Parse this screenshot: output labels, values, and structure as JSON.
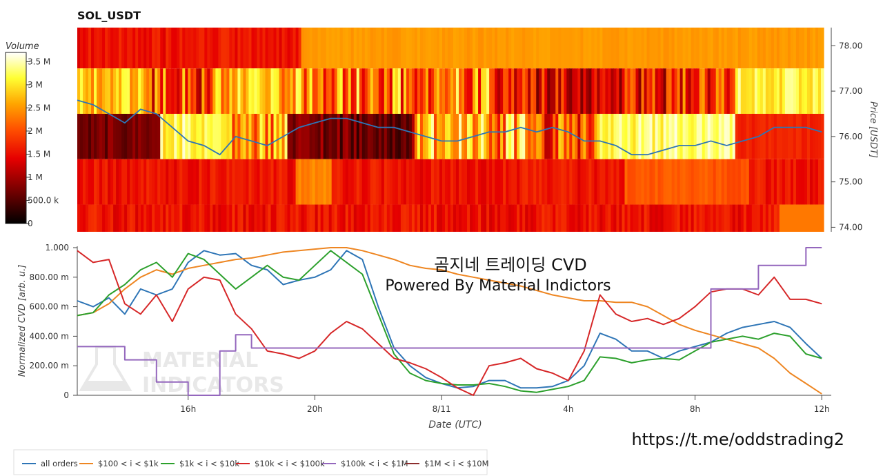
{
  "chart_data": [
    {
      "type": "heatmap",
      "title": "SOL_USDT",
      "ylabel": "Price [USDT]",
      "price_ticks": [
        "78.00",
        "77.00",
        "76.00",
        "75.00",
        "74.00"
      ],
      "price_levels": [
        78.0,
        77.0,
        76.0,
        75.0,
        74.0
      ],
      "ylim": [
        73.9,
        78.4
      ],
      "price_bands": [
        {
          "from": 77.5,
          "to": 78.4
        },
        {
          "from": 76.5,
          "to": 77.5
        },
        {
          "from": 75.5,
          "to": 76.5
        },
        {
          "from": 74.5,
          "to": 75.5
        },
        {
          "from": 73.9,
          "to": 74.5
        }
      ],
      "colorbar": {
        "title": "Volume",
        "tick_labels": [
          "3.5 M",
          "3 M",
          "2.5 M",
          "2 M",
          "1.5 M",
          "1 M",
          "500.0 k",
          "0"
        ],
        "tick_values": [
          3500000,
          3000000,
          2500000,
          2000000,
          1500000,
          1000000,
          500000,
          0
        ],
        "max": 3700000,
        "colors": [
          "#000000",
          "#7a0000",
          "#e60000",
          "#ff5000",
          "#ffa500",
          "#ffff33",
          "#ffffff"
        ]
      },
      "price_line": {
        "color": "#2e75b6",
        "x_hours": [
          0,
          0.5,
          1,
          1.5,
          2,
          2.5,
          3,
          3.5,
          4,
          4.5,
          5,
          5.5,
          6,
          6.5,
          7,
          7.5,
          8,
          8.5,
          9,
          9.5,
          10,
          10.5,
          11,
          11.5,
          12,
          12.5,
          13,
          13.5,
          14,
          14.5,
          15,
          15.5,
          16,
          16.5,
          17,
          17.5,
          18,
          18.5,
          19,
          19.5,
          20,
          20.5,
          21,
          21.5,
          22,
          22.5,
          23,
          23.5
        ],
        "values": [
          76.8,
          76.7,
          76.5,
          76.3,
          76.6,
          76.5,
          76.2,
          75.9,
          75.8,
          75.6,
          76.0,
          75.9,
          75.8,
          76.0,
          76.2,
          76.3,
          76.4,
          76.4,
          76.3,
          76.2,
          76.2,
          76.1,
          76.0,
          75.9,
          75.9,
          76.0,
          76.1,
          76.1,
          76.2,
          76.1,
          76.2,
          76.1,
          75.9,
          75.9,
          75.8,
          75.6,
          75.6,
          75.7,
          75.8,
          75.8,
          75.9,
          75.8,
          75.9,
          76.0,
          76.2,
          76.2,
          76.2,
          76.1
        ]
      }
    },
    {
      "type": "line",
      "ylabel": "Normalized CVD [arb. u.]",
      "xlabel": "Date (UTC)",
      "x_ticks": [
        {
          "label": "16h",
          "hour": 3.5
        },
        {
          "label": "20h",
          "hour": 7.5
        },
        {
          "label": "8/11",
          "hour": 11.5
        },
        {
          "label": "4h",
          "hour": 15.5
        },
        {
          "label": "8h",
          "hour": 19.5
        },
        {
          "label": "12h",
          "hour": 23.5
        }
      ],
      "y_ticks": [
        {
          "label": "1.000",
          "value": 1.0
        },
        {
          "label": "800.00 m",
          "value": 0.8
        },
        {
          "label": "600.00 m",
          "value": 0.6
        },
        {
          "label": "400.00 m",
          "value": 0.4
        },
        {
          "label": "200.00 m",
          "value": 0.2
        },
        {
          "label": "0",
          "value": 0.0
        }
      ],
      "xlim": [
        0,
        23.8
      ],
      "ylim": [
        0,
        1.0
      ],
      "x_hours": [
        0,
        0.5,
        1,
        1.5,
        2,
        2.5,
        3,
        3.5,
        4,
        4.5,
        5,
        5.5,
        6,
        6.5,
        7,
        7.5,
        8,
        8.5,
        9,
        9.5,
        10,
        10.5,
        11,
        11.5,
        12,
        12.5,
        13,
        13.5,
        14,
        14.5,
        15,
        15.5,
        16,
        16.5,
        17,
        17.5,
        18,
        18.5,
        19,
        19.5,
        20,
        20.5,
        21,
        21.5,
        22,
        22.5,
        23,
        23.5
      ],
      "series": [
        {
          "name": "all orders",
          "color": "#2e75b6",
          "values": [
            0.64,
            0.6,
            0.66,
            0.55,
            0.72,
            0.68,
            0.72,
            0.9,
            0.98,
            0.95,
            0.96,
            0.88,
            0.85,
            0.75,
            0.78,
            0.8,
            0.85,
            0.98,
            0.92,
            0.6,
            0.32,
            0.2,
            0.12,
            0.08,
            0.05,
            0.06,
            0.1,
            0.1,
            0.05,
            0.05,
            0.06,
            0.1,
            0.2,
            0.42,
            0.38,
            0.3,
            0.3,
            0.25,
            0.3,
            0.33,
            0.36,
            0.42,
            0.46,
            0.48,
            0.5,
            0.46,
            0.35,
            0.25
          ]
        },
        {
          "name": "$100 < i < $1k",
          "color": "#ee8622",
          "values": [
            0.54,
            0.56,
            0.62,
            0.72,
            0.8,
            0.85,
            0.82,
            0.86,
            0.88,
            0.9,
            0.92,
            0.93,
            0.95,
            0.97,
            0.98,
            0.99,
            1.0,
            1.0,
            0.98,
            0.95,
            0.92,
            0.88,
            0.86,
            0.85,
            0.82,
            0.8,
            0.78,
            0.76,
            0.74,
            0.71,
            0.68,
            0.66,
            0.64,
            0.64,
            0.63,
            0.63,
            0.6,
            0.54,
            0.48,
            0.44,
            0.41,
            0.38,
            0.35,
            0.32,
            0.25,
            0.15,
            0.08,
            0.01
          ]
        },
        {
          "name": "$1k < i < $10k",
          "color": "#2ca02c",
          "values": [
            0.54,
            0.56,
            0.68,
            0.75,
            0.85,
            0.9,
            0.8,
            0.96,
            0.92,
            0.82,
            0.72,
            0.8,
            0.88,
            0.8,
            0.78,
            0.88,
            0.98,
            0.9,
            0.82,
            0.55,
            0.28,
            0.15,
            0.1,
            0.08,
            0.07,
            0.07,
            0.08,
            0.06,
            0.03,
            0.02,
            0.04,
            0.06,
            0.1,
            0.26,
            0.25,
            0.22,
            0.24,
            0.25,
            0.24,
            0.3,
            0.36,
            0.38,
            0.4,
            0.38,
            0.42,
            0.4,
            0.28,
            0.25
          ]
        },
        {
          "name": "$10k < i < $100k",
          "color": "#d62728",
          "values": [
            0.98,
            0.9,
            0.92,
            0.62,
            0.55,
            0.68,
            0.5,
            0.72,
            0.8,
            0.78,
            0.55,
            0.45,
            0.3,
            0.28,
            0.25,
            0.3,
            0.42,
            0.5,
            0.45,
            0.35,
            0.25,
            0.22,
            0.18,
            0.12,
            0.05,
            0.0,
            0.2,
            0.22,
            0.25,
            0.18,
            0.15,
            0.1,
            0.3,
            0.68,
            0.55,
            0.5,
            0.52,
            0.48,
            0.52,
            0.6,
            0.7,
            0.72,
            0.72,
            0.68,
            0.8,
            0.65,
            0.65,
            0.62
          ]
        },
        {
          "name": "$100k < i < $1M",
          "color": "#9467bd",
          "values": [
            0.33,
            0.33,
            0.33,
            0.24,
            0.24,
            0.09,
            0.09,
            0.0,
            0.0,
            0.3,
            0.41,
            0.32,
            0.32,
            0.32,
            0.32,
            0.32,
            0.32,
            0.32,
            0.32,
            0.32,
            0.32,
            0.32,
            0.32,
            0.32,
            0.32,
            0.32,
            0.32,
            0.32,
            0.32,
            0.32,
            0.32,
            0.32,
            0.32,
            0.32,
            0.32,
            0.32,
            0.32,
            0.32,
            0.32,
            0.32,
            0.72,
            0.72,
            0.72,
            0.88,
            0.88,
            0.88,
            1.0,
            1.0
          ]
        },
        {
          "name": "$1M < i < $10M",
          "color": "#8c2d2d",
          "values": []
        }
      ],
      "annotations": [
        "곰지네 트레이딩 CVD",
        "Powered By Material Indictors"
      ],
      "watermark": "MATERIAL INDICATORS",
      "legend_position": "bottom-left"
    }
  ],
  "footer": {
    "link": "https://t.me/oddstrading2"
  }
}
